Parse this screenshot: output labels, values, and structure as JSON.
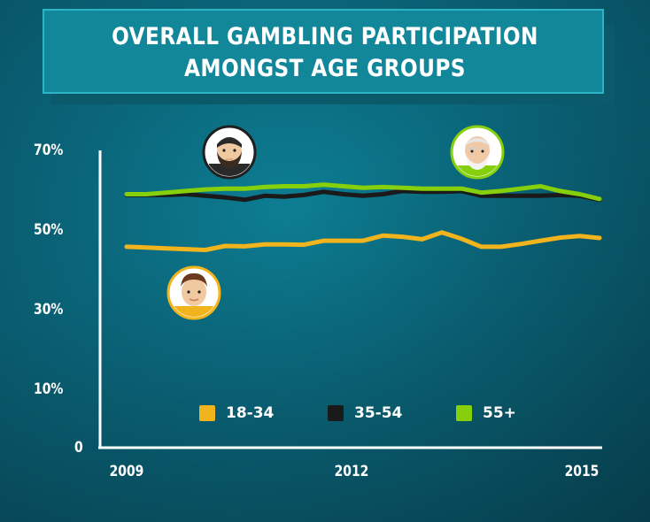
{
  "title": {
    "line1": "OVERALL GAMBLING PARTICIPATION",
    "line2": "AMONGST AGE GROUPS"
  },
  "colors": {
    "background": "#0a6478",
    "title_box": "#13879a",
    "axis": "#ffffff",
    "series_18_34": "#f2b41c",
    "series_35_54": "#1a1a1a",
    "series_55_plus": "#86cf0b"
  },
  "icons": {
    "young": "young-man-avatar-icon",
    "middle": "bearded-man-avatar-icon",
    "old": "elderly-man-avatar-icon"
  },
  "chart_data": {
    "type": "line",
    "title": "OVERALL GAMBLING PARTICIPATION AMONGST AGE GROUPS",
    "xlabel": "",
    "ylabel": "",
    "y_tick_labels": [
      "0",
      "10%",
      "30%",
      "50%",
      "70%"
    ],
    "x_tick_labels": [
      "2009",
      "2012",
      "2015"
    ],
    "xlim": [
      2009,
      2015
    ],
    "ylim": [
      0,
      70
    ],
    "grid": false,
    "legend_position": "bottom-center",
    "x": [
      2009.0,
      2009.25,
      2009.5,
      2009.75,
      2010.0,
      2010.25,
      2010.5,
      2010.75,
      2011.0,
      2011.25,
      2011.5,
      2011.75,
      2012.0,
      2012.25,
      2012.5,
      2012.75,
      2013.0,
      2013.25,
      2013.5,
      2013.75,
      2014.0,
      2014.25,
      2014.5,
      2014.75,
      2015.0
    ],
    "series": [
      {
        "name": "18-34",
        "color": "#f2b41c",
        "values": [
          45.8,
          45.6,
          45.4,
          45.2,
          45.0,
          46.0,
          45.9,
          46.4,
          46.4,
          46.3,
          47.3,
          47.3,
          47.3,
          48.6,
          48.3,
          47.7,
          49.4,
          47.8,
          45.8,
          45.8,
          46.5,
          47.3,
          48.1,
          48.5,
          48.0
        ]
      },
      {
        "name": "35-54",
        "color": "#1a1a1a",
        "values": [
          58.8,
          58.8,
          58.8,
          59.0,
          58.6,
          58.2,
          57.6,
          58.6,
          58.4,
          58.8,
          59.6,
          59.0,
          58.6,
          59.0,
          59.8,
          59.6,
          59.6,
          59.8,
          58.6,
          58.6,
          58.6,
          58.6,
          58.8,
          58.6,
          57.6
        ]
      },
      {
        "name": "55+",
        "color": "#86cf0b",
        "values": [
          59.0,
          59.0,
          59.4,
          59.8,
          60.2,
          60.4,
          60.4,
          60.8,
          61.0,
          61.0,
          61.4,
          61.0,
          60.6,
          60.8,
          60.6,
          60.4,
          60.4,
          60.4,
          59.4,
          59.8,
          60.4,
          61.0,
          59.8,
          59.0,
          57.8
        ]
      }
    ]
  }
}
